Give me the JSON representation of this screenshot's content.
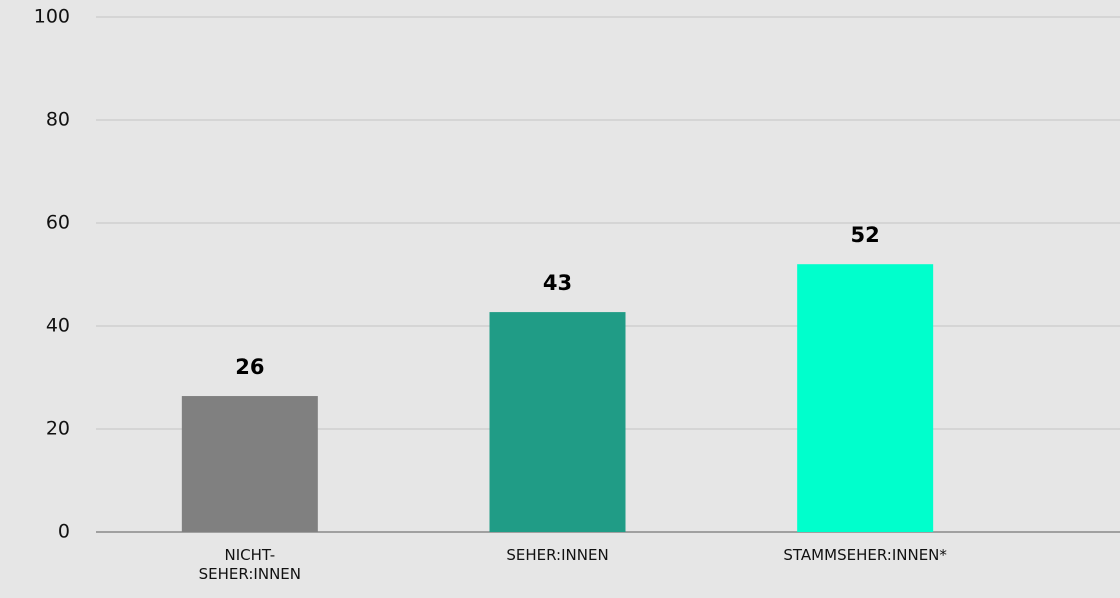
{
  "chart_data": {
    "type": "bar",
    "categories": [
      "NICHT-SEHER:INNEN",
      "SEHER:INNEN",
      "STAMMSEHER:INNEN*"
    ],
    "values": [
      26.4,
      42.7,
      52
    ],
    "value_labels": [
      "26",
      "43",
      "52"
    ],
    "colors": [
      "#808080",
      "#209c86",
      "#00ffcc"
    ],
    "ylim": [
      0,
      100
    ],
    "yticks": [
      0,
      20,
      40,
      60,
      80,
      100
    ],
    "grid": true
  }
}
